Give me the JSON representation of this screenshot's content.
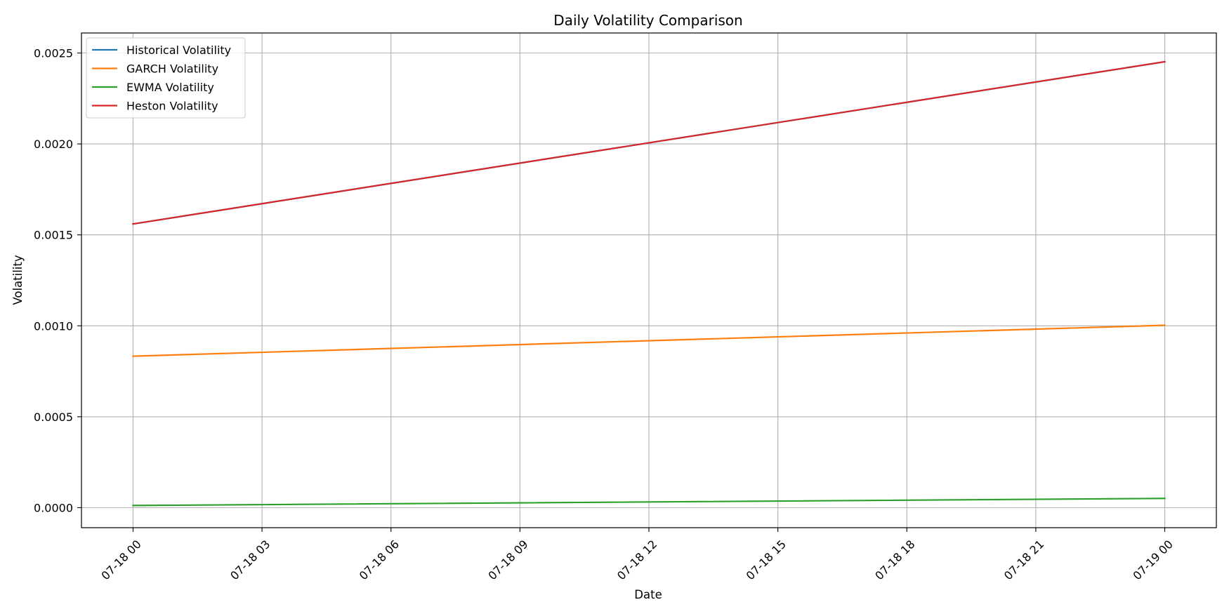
{
  "chart_data": {
    "type": "line",
    "title": "Daily Volatility Comparison",
    "xlabel": "Date",
    "ylabel": "Volatility",
    "x": [
      "07-18 00",
      "07-19 00"
    ],
    "x_hours": [
      0,
      24
    ],
    "xlim_hours": [
      -1.2,
      25.2
    ],
    "ylim": [
      -0.00011,
      0.00261
    ],
    "x_ticks": [
      {
        "label": "07-18 00",
        "hour": 0
      },
      {
        "label": "07-18 03",
        "hour": 3
      },
      {
        "label": "07-18 06",
        "hour": 6
      },
      {
        "label": "07-18 09",
        "hour": 9
      },
      {
        "label": "07-18 12",
        "hour": 12
      },
      {
        "label": "07-18 15",
        "hour": 15
      },
      {
        "label": "07-18 18",
        "hour": 18
      },
      {
        "label": "07-18 21",
        "hour": 21
      },
      {
        "label": "07-19 00",
        "hour": 24
      }
    ],
    "y_ticks": [
      {
        "label": "0.0000",
        "value": 0.0
      },
      {
        "label": "0.0005",
        "value": 0.0005
      },
      {
        "label": "0.0010",
        "value": 0.001
      },
      {
        "label": "0.0015",
        "value": 0.0015
      },
      {
        "label": "0.0020",
        "value": 0.002
      },
      {
        "label": "0.0025",
        "value": 0.0025
      }
    ],
    "grid": true,
    "legend_position": "upper left",
    "series": [
      {
        "name": "Historical Volatility",
        "color": "#1f77b4",
        "values": [
          0.00156,
          0.002452
        ]
      },
      {
        "name": "GARCH Volatility",
        "color": "#ff7f0e",
        "values": [
          0.000833,
          0.001003
        ]
      },
      {
        "name": "EWMA Volatility",
        "color": "#2ca02c",
        "values": [
          1.2e-05,
          5.1e-05
        ]
      },
      {
        "name": "Heston Volatility",
        "color": "#d62728",
        "values": [
          0.00156,
          0.002452
        ]
      }
    ]
  }
}
